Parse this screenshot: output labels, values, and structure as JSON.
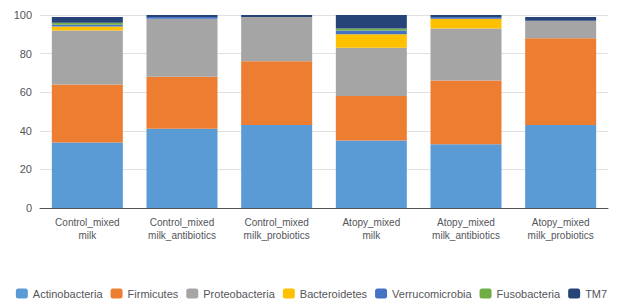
{
  "chart_data": {
    "type": "bar",
    "stacked": true,
    "categories": [
      "Control_mixed\nmilk",
      "Control_mixed\nmilk_antibiotics",
      "Control_mixed\nmilk_probiotics",
      "Atopy_mixed\nmilk",
      "Atopy_mixed\nmilk_antibiotics",
      "Atopy_mixed\nmilk_probiotics"
    ],
    "series": [
      {
        "name": "Actinobacteria",
        "color": "#5B9BD5",
        "values": [
          34,
          41,
          43,
          35,
          33,
          43
        ]
      },
      {
        "name": "Firmicutes",
        "color": "#ED7D31",
        "values": [
          30,
          27,
          33,
          23,
          33,
          45
        ]
      },
      {
        "name": "Proteobacteria",
        "color": "#A5A5A5",
        "values": [
          28,
          30,
          23,
          25,
          27,
          9
        ]
      },
      {
        "name": "Bacteroidetes",
        "color": "#FFC000",
        "values": [
          2,
          0,
          0,
          7,
          5,
          0
        ]
      },
      {
        "name": "Verrucomicrobia",
        "color": "#4472C4",
        "values": [
          1,
          1,
          0,
          2,
          1,
          0
        ]
      },
      {
        "name": "Fusobacteria",
        "color": "#70AD47",
        "values": [
          1,
          0,
          0,
          1,
          0,
          0
        ]
      },
      {
        "name": "TM7",
        "color": "#264478",
        "values": [
          3,
          1,
          1,
          7,
          1,
          2
        ]
      }
    ],
    "ylim": [
      0,
      100
    ],
    "yticks": [
      0,
      20,
      40,
      60,
      80,
      100
    ],
    "grid": true,
    "legend": "bottom"
  }
}
